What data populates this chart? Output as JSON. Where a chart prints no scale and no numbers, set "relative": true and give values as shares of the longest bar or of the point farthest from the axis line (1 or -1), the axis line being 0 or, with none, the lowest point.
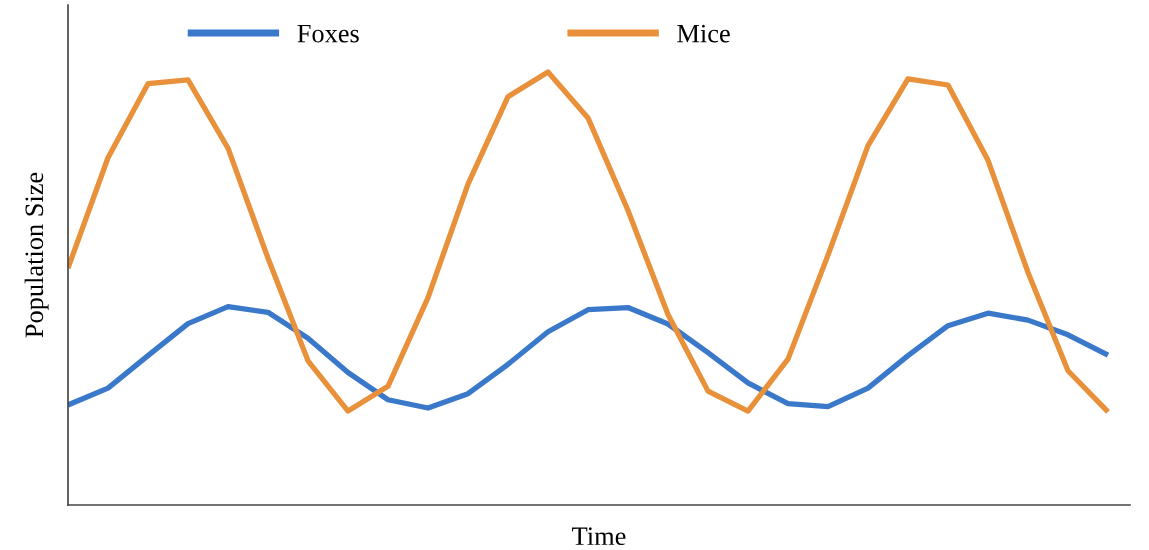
{
  "chart_data": {
    "type": "line",
    "relative": true,
    "xlabel": "Time",
    "ylabel": "Population Size",
    "legend": "top",
    "grid": false,
    "marker": "none",
    "line_style": "solid",
    "categories": [
      null,
      null,
      null,
      null,
      null,
      null,
      null,
      null,
      null,
      null,
      null,
      null,
      null,
      null,
      null,
      null,
      null,
      null,
      null,
      null,
      null,
      null,
      null,
      null,
      null,
      null,
      null
    ],
    "series": [
      {
        "name": "Foxes",
        "color": "#3a78c9",
        "values": [
          0.231,
          0.27,
          0.345,
          0.419,
          0.458,
          0.445,
          0.385,
          0.306,
          0.243,
          0.224,
          0.257,
          0.325,
          0.4,
          0.451,
          0.456,
          0.418,
          0.352,
          0.282,
          0.234,
          0.227,
          0.27,
          0.345,
          0.414,
          0.443,
          0.427,
          0.393,
          0.346
        ]
      },
      {
        "name": "Mice",
        "color": "#e8903a",
        "values": [
          0.547,
          0.802,
          0.973,
          0.982,
          0.824,
          0.57,
          0.333,
          0.217,
          0.274,
          0.479,
          0.741,
          0.943,
          1,
          0.894,
          0.68,
          0.44,
          0.263,
          0.217,
          0.337,
          0.577,
          0.83,
          0.984,
          0.97,
          0.796,
          0.537,
          0.31,
          0.215
        ]
      }
    ]
  }
}
